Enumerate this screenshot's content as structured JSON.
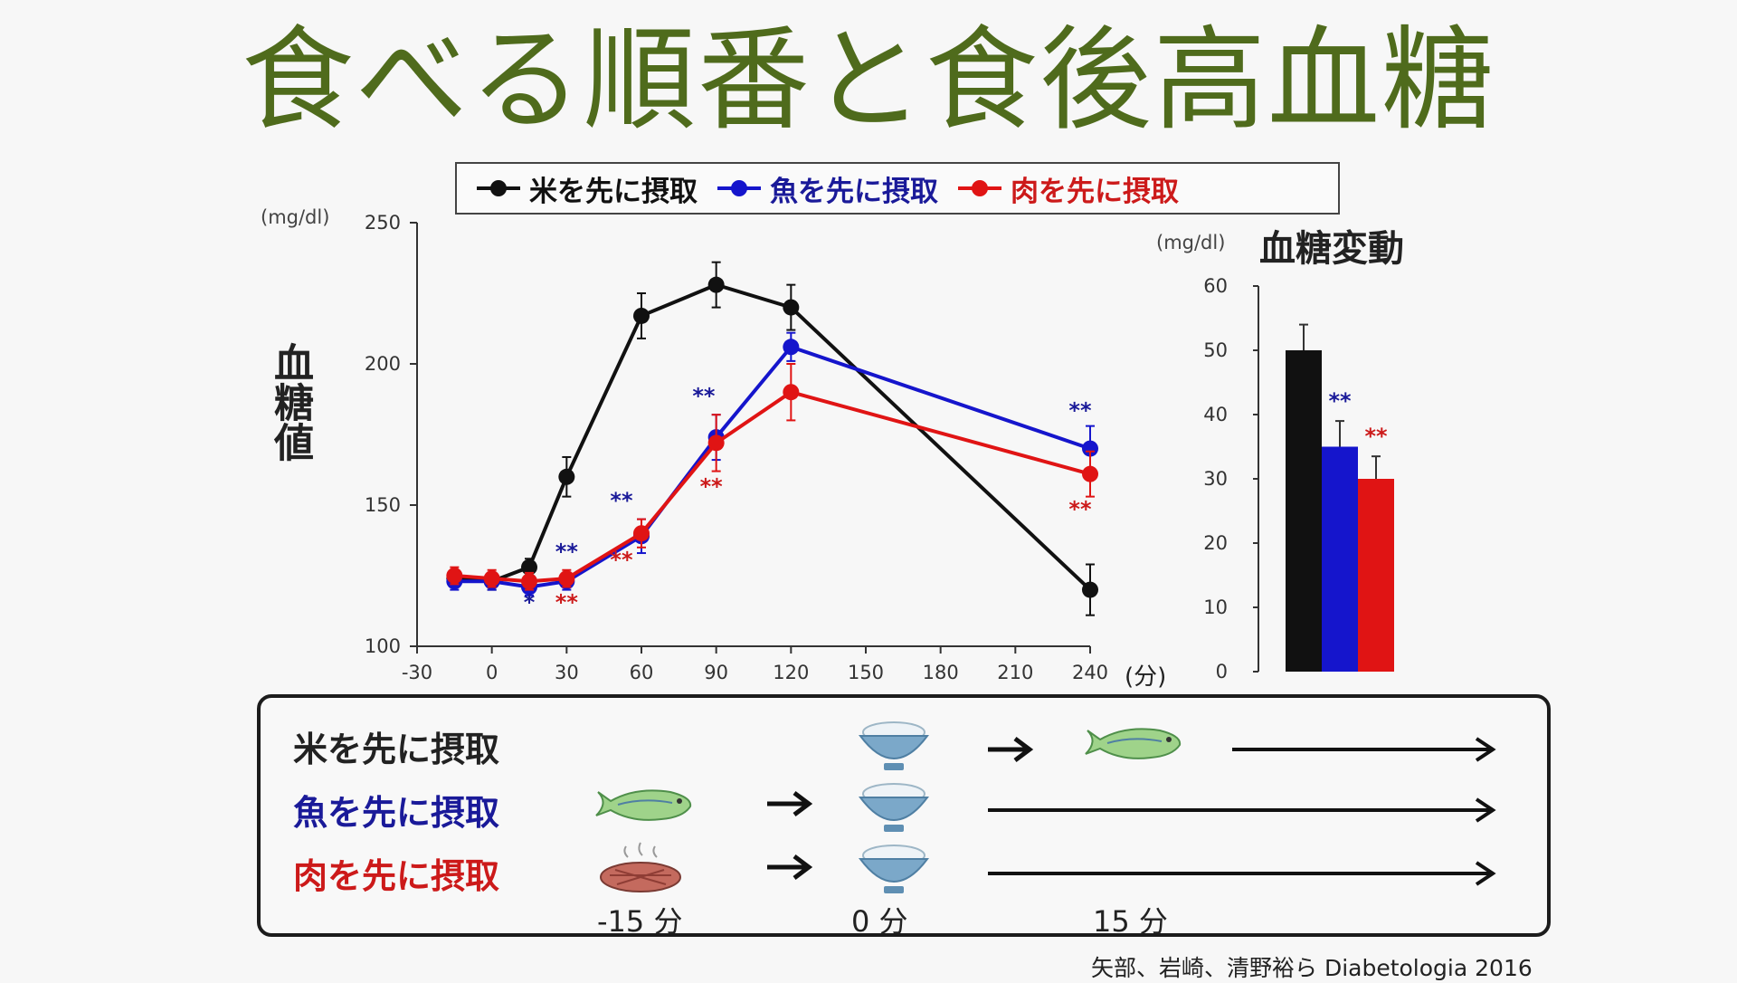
{
  "title": "食べる順番と食後高血糖",
  "legend": [
    {
      "label": "米を先に摂取",
      "color": "#111111"
    },
    {
      "label": "魚を先に摂取",
      "color": "#1515cc"
    },
    {
      "label": "肉を先に摂取",
      "color": "#e01414"
    }
  ],
  "colors": {
    "title": "#4f6b1c",
    "rice": "#111111",
    "fish": "#1515cc",
    "meat": "#e01414",
    "fish_label": "#1a1a99",
    "meat_label": "#cc1a1a"
  },
  "chart_data": [
    {
      "type": "line",
      "unit": "(mg/dl)",
      "ylabel": "血糖値",
      "xunit": "(分)",
      "ylim": [
        100,
        250
      ],
      "yticks": [
        "100",
        "150",
        "200",
        "250"
      ],
      "xlim": [
        -30,
        240
      ],
      "xticks": [
        "-30",
        "0",
        "30",
        "60",
        "90",
        "120",
        "150",
        "180",
        "210",
        "240"
      ],
      "xtick_values": [
        -30,
        0,
        30,
        60,
        90,
        120,
        150,
        180,
        210,
        240
      ],
      "series": [
        {
          "name": "米を先に摂取",
          "x": [
            -15,
            0,
            15,
            30,
            60,
            90,
            120,
            240
          ],
          "values": [
            124,
            123,
            128,
            160,
            217,
            228,
            220,
            120
          ],
          "err": [
            3,
            3,
            3,
            7,
            8,
            8,
            8,
            9
          ]
        },
        {
          "name": "魚を先に摂取",
          "x": [
            -15,
            0,
            15,
            30,
            60,
            90,
            120,
            240
          ],
          "values": [
            123,
            123,
            121,
            123,
            139,
            174,
            206,
            170
          ],
          "err": [
            3,
            3,
            3,
            3,
            6,
            8,
            5,
            8
          ]
        },
        {
          "name": "肉を先に摂取",
          "x": [
            -15,
            0,
            15,
            30,
            60,
            90,
            120,
            240
          ],
          "values": [
            125,
            124,
            123,
            124,
            140,
            172,
            190,
            161
          ],
          "err": [
            3,
            3,
            3,
            3,
            5,
            10,
            10,
            8
          ]
        }
      ],
      "annotations": [
        {
          "text": "*",
          "series": "魚を先に摂取",
          "x": 15,
          "y": 113
        },
        {
          "text": "**",
          "series": "魚を先に摂取",
          "x": 30,
          "y": 131
        },
        {
          "text": "**",
          "series": "肉を先に摂取",
          "x": 30,
          "y": 113
        },
        {
          "text": "**",
          "series": "魚を先に摂取",
          "x": 52,
          "y": 149
        },
        {
          "text": "**",
          "series": "肉を先に摂取",
          "x": 52,
          "y": 128
        },
        {
          "text": "**",
          "series": "魚を先に摂取",
          "x": 85,
          "y": 186
        },
        {
          "text": "**",
          "series": "肉を先に摂取",
          "x": 88,
          "y": 154
        },
        {
          "text": "**",
          "series": "魚を先に摂取",
          "x": 236,
          "y": 181
        },
        {
          "text": "**",
          "series": "肉を先に摂取",
          "x": 236,
          "y": 146
        }
      ]
    },
    {
      "type": "bar",
      "title": "血糖変動",
      "unit": "(mg/dl)",
      "ylim": [
        0,
        60
      ],
      "yticks": [
        "0",
        "10",
        "20",
        "30",
        "40",
        "50",
        "60"
      ],
      "categories": [
        "米を先に摂取",
        "魚を先に摂取",
        "肉を先に摂取"
      ],
      "values": [
        50,
        35,
        30
      ],
      "err": [
        4,
        4,
        3.5
      ],
      "annotations": [
        {
          "text": "**",
          "series": "魚を先に摂取",
          "y": 41
        },
        {
          "text": "**",
          "series": "肉を先に摂取",
          "y": 35.5
        }
      ]
    }
  ],
  "meal_order": {
    "rows": [
      {
        "label": "米を先に摂取",
        "color": "#111111"
      },
      {
        "label": "魚を先に摂取",
        "color": "#1a1a99"
      },
      {
        "label": "肉を先に摂取",
        "color": "#cc1a1a"
      }
    ],
    "times": [
      "-15 分",
      "0 分",
      "15 分"
    ],
    "icons": [
      "rice-bowl-icon",
      "fish-icon",
      "steak-icon",
      "arrow-icon"
    ]
  },
  "citation": "矢部、岩崎、清野裕ら  Diabetologia 2016"
}
